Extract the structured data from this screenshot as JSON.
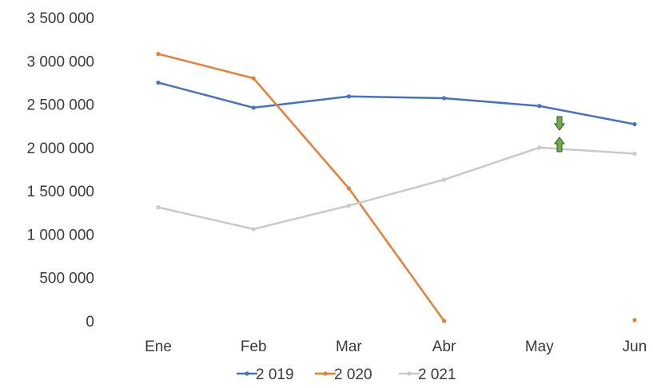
{
  "chart_data": {
    "type": "line",
    "categories": [
      "Ene",
      "Feb",
      "Mar",
      "Abr",
      "May",
      "Jun"
    ],
    "ylim": [
      0,
      3500000
    ],
    "yticks": [
      0,
      500000,
      1000000,
      1500000,
      2000000,
      2500000,
      3000000,
      3500000
    ],
    "ytick_labels": [
      "0",
      "500 000",
      "1 000 000",
      "1 500 000",
      "2 000 000",
      "2 500 000",
      "3 000 000",
      "3 500 000"
    ],
    "grid": false,
    "legend_position": "bottom",
    "series": [
      {
        "name": "2 019",
        "color": "#4472c4",
        "values": [
          2750000,
          2460000,
          2590000,
          2570000,
          2480000,
          2270000
        ]
      },
      {
        "name": "2 020",
        "color": "#ed7d31",
        "values": [
          3080000,
          2800000,
          1530000,
          0,
          null,
          10000
        ]
      },
      {
        "name": "2 021",
        "color": "#c9c9c9",
        "values": [
          1310000,
          1060000,
          1330000,
          1630000,
          2000000,
          1930000
        ]
      }
    ],
    "annotations": [
      {
        "type": "arrow",
        "direction": "down",
        "color": "#70ad47"
      },
      {
        "type": "arrow",
        "direction": "up",
        "color": "#70ad47"
      }
    ]
  }
}
